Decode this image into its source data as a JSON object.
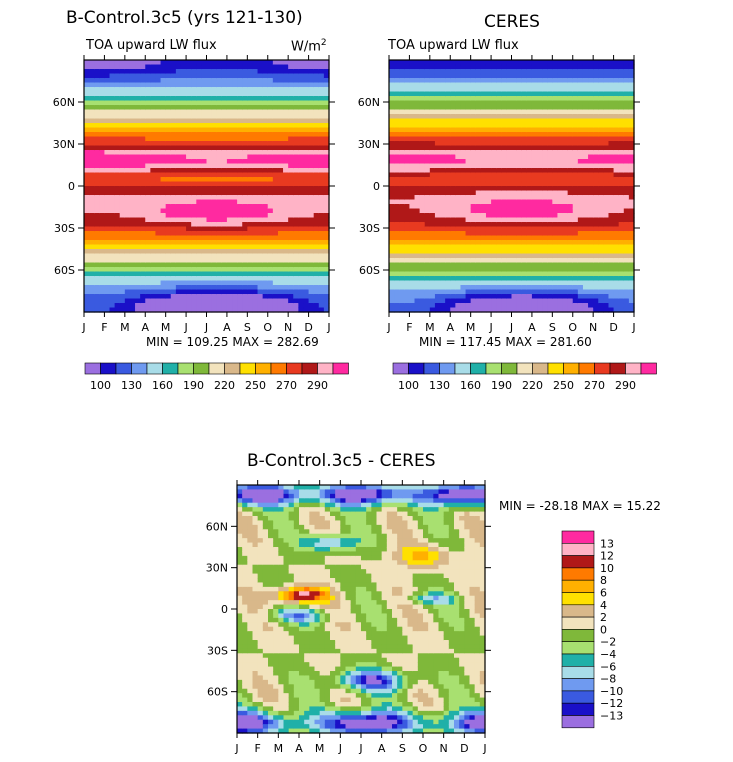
{
  "palette": {
    "model_obs": [
      "#9b6fe0",
      "#1a10c8",
      "#3a5ae0",
      "#6f9af0",
      "#a8dce8",
      "#20b0a8",
      "#a8e070",
      "#7fb83a",
      "#f2e3bd",
      "#d9b88a",
      "#ffe000",
      "#ffb000",
      "#ff7a00",
      "#e83a20",
      "#b01818",
      "#ffb3c6",
      "#ff2aa0"
    ],
    "diff": [
      "#9b6fe0",
      "#1a10c8",
      "#3a5ae0",
      "#6f9af0",
      "#a8dce8",
      "#20b0a8",
      "#a8e070",
      "#7fb83a",
      "#f2e3bd",
      "#d9b88a",
      "#ffe000",
      "#ffb000",
      "#ff7a00",
      "#b01818",
      "#ffb3c6",
      "#ff2aa0"
    ]
  },
  "chart_data": [
    {
      "type": "heatmap",
      "panel": "model",
      "title": "B-Control.3c5 (yrs 121-130)",
      "subtitle": "TOA upward LW flux",
      "units": "W/m",
      "units_sup": "2",
      "x_ticks": [
        "J",
        "F",
        "M",
        "A",
        "M",
        "J",
        "J",
        "A",
        "S",
        "O",
        "N",
        "D",
        "J"
      ],
      "y_ticks": [
        "60N",
        "30N",
        "0",
        "30S",
        "60S"
      ],
      "y_tick_values": [
        60,
        30,
        0,
        -30,
        -60
      ],
      "ylim": [
        -90,
        90
      ],
      "stats": "MIN = 109.25 MAX = 282.69",
      "min": 109.25,
      "max": 282.69,
      "levels": [
        100,
        130,
        160,
        190,
        220,
        250,
        270,
        290
      ],
      "colorbar_labels": [
        "100",
        "130",
        "160",
        "190",
        "220",
        "250",
        "270",
        "290"
      ]
    },
    {
      "type": "heatmap",
      "panel": "obs",
      "title": "CERES",
      "subtitle": "TOA upward LW flux",
      "x_ticks": [
        "J",
        "F",
        "M",
        "A",
        "M",
        "J",
        "J",
        "A",
        "S",
        "O",
        "N",
        "D",
        "J"
      ],
      "y_ticks": [
        "60N",
        "30N",
        "0",
        "30S",
        "60S"
      ],
      "y_tick_values": [
        60,
        30,
        0,
        -30,
        -60
      ],
      "ylim": [
        -90,
        90
      ],
      "stats": "MIN = 117.45 MAX = 281.60",
      "min": 117.45,
      "max": 281.6,
      "levels": [
        100,
        130,
        160,
        190,
        220,
        250,
        270,
        290
      ],
      "colorbar_labels": [
        "100",
        "130",
        "160",
        "190",
        "220",
        "250",
        "270",
        "290"
      ]
    },
    {
      "type": "heatmap",
      "panel": "diff",
      "title": "B-Control.3c5 - CERES",
      "x_ticks": [
        "J",
        "F",
        "M",
        "A",
        "M",
        "J",
        "J",
        "A",
        "S",
        "O",
        "N",
        "D",
        "J"
      ],
      "y_ticks": [
        "60N",
        "30N",
        "0",
        "30S",
        "60S"
      ],
      "y_tick_values": [
        60,
        30,
        0,
        -30,
        -60
      ],
      "ylim": [
        -90,
        90
      ],
      "stats": "MIN = -28.18 MAX =  15.22",
      "min": -28.18,
      "max": 15.22,
      "levels": [
        -13,
        -12,
        -10,
        -8,
        -6,
        -4,
        -2,
        0,
        2,
        4,
        6,
        8,
        10,
        12,
        13
      ],
      "colorbar_labels": [
        "13",
        "12",
        "10",
        "8",
        "6",
        "4",
        "2",
        "0",
        "−2",
        "−4",
        "−6",
        "−8",
        "−10",
        "−12",
        "−13"
      ]
    }
  ]
}
